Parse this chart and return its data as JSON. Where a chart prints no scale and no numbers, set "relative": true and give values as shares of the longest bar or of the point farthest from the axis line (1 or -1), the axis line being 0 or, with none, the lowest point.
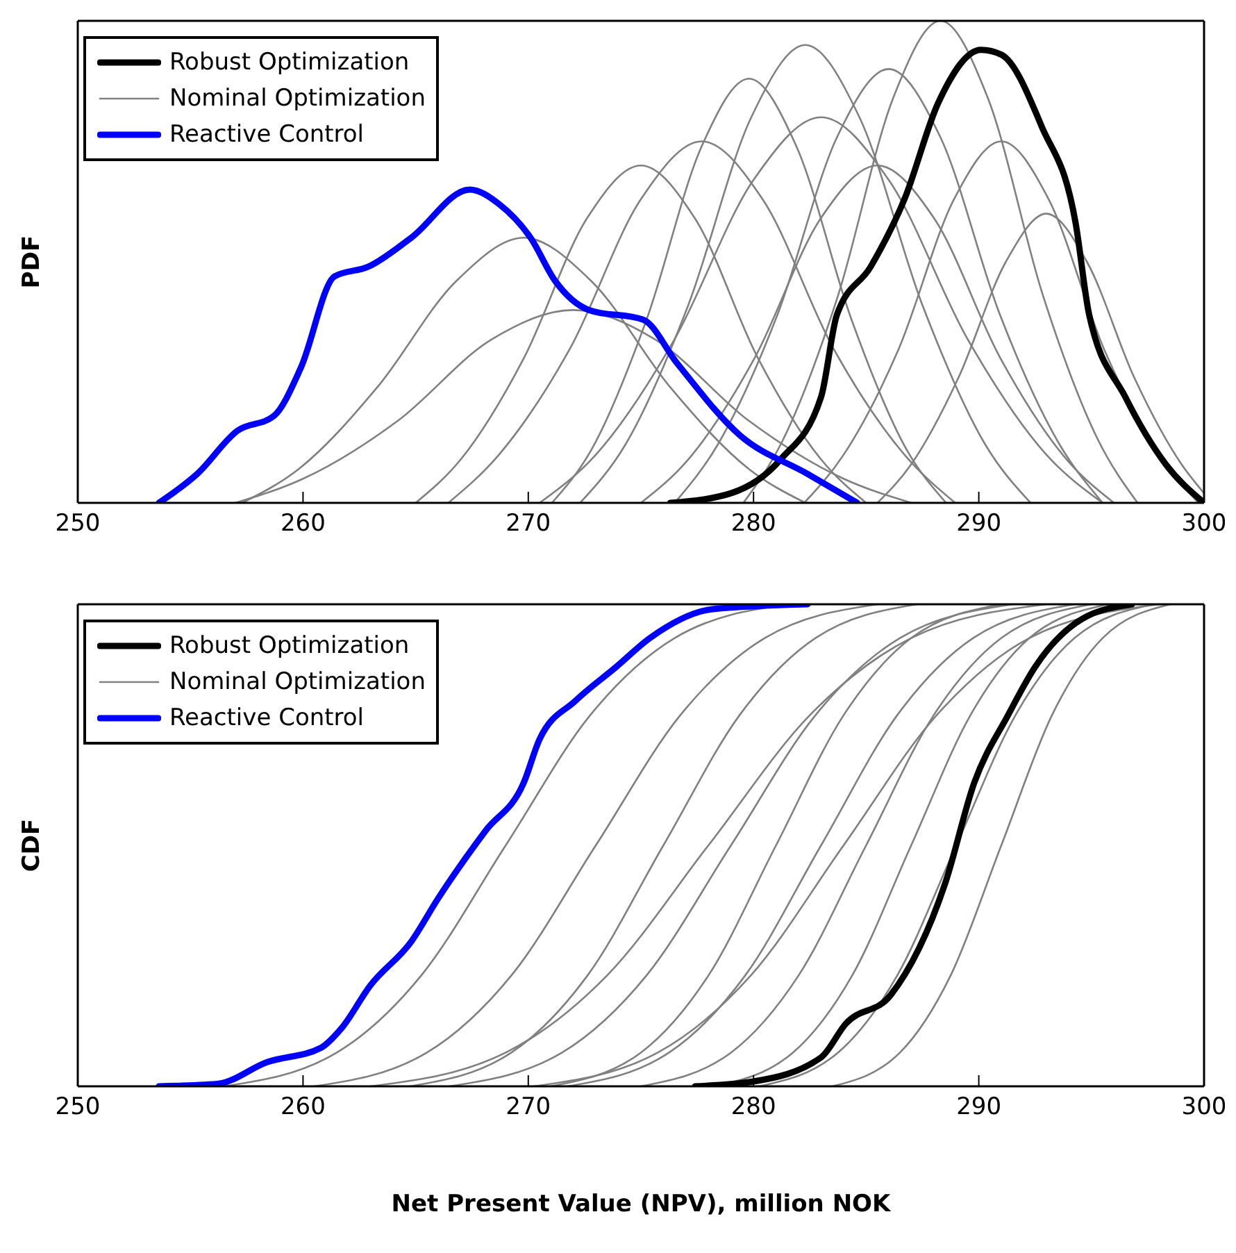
{
  "chart_data": [
    {
      "type": "line",
      "ylabel": "PDF",
      "relative": true,
      "xlim": [
        250,
        300
      ],
      "xticks": [
        250,
        260,
        270,
        280,
        290,
        300
      ],
      "legend": "top left",
      "series": [
        {
          "name": "Robust Optimization",
          "color": "#000000",
          "x": [
            276.3,
            279,
            281.2,
            283,
            283.7,
            285.2,
            286.7,
            288.2,
            290.1,
            291,
            292.8,
            294.3,
            294.9,
            296.5,
            298.3,
            300
          ],
          "values": [
            0,
            0.02,
            0.09,
            0.22,
            0.39,
            0.49,
            0.63,
            0.83,
            0.94,
            0.93,
            0.78,
            0.58,
            0.39,
            0.22,
            0.08,
            0
          ]
        },
        {
          "name": "Nominal Optimization",
          "color": "#808080",
          "x": [
            279.55,
            281.3,
            283.75,
            286.2,
            288.3,
            290.4,
            292.85,
            295.3,
            297.05
          ],
          "values": [
            0,
            0.13,
            0.43,
            0.84,
            1,
            0.84,
            0.43,
            0.13,
            0
          ]
        },
        {
          "name": "Reactive Control",
          "color": "#0000ff",
          "x": [
            253.6,
            255.3,
            257.1,
            258.7,
            259.9,
            261.4,
            262.9,
            264.8,
            267.4,
            268.7,
            270.1,
            271.2,
            272.7,
            275.1,
            276.6,
            279.4,
            282.4,
            284.6
          ],
          "values": [
            0,
            0.06,
            0.15,
            0.18,
            0.28,
            0.47,
            0.49,
            0.55,
            0.65,
            0.62,
            0.55,
            0.46,
            0.4,
            0.38,
            0.29,
            0.14,
            0.06,
            0
          ]
        },
        {
          "color": "#808080",
          "x": [
            272.3,
            274.3,
            277.1,
            279.9,
            282.3,
            284.7,
            287.5,
            290.3,
            292.3
          ],
          "values": [
            0,
            0.12,
            0.41,
            0.8,
            0.95,
            0.8,
            0.41,
            0.12,
            0
          ]
        },
        {
          "color": "#808080",
          "x": [
            257.3,
            259.8,
            263.3,
            266.8,
            269.8,
            272.8,
            276.3,
            279.8,
            282.3
          ],
          "values": [
            0,
            0.07,
            0.24,
            0.46,
            0.55,
            0.46,
            0.24,
            0.07,
            0
          ]
        },
        {
          "color": "#808080",
          "x": [
            266.45,
            268.7,
            271.85,
            275,
            277.7,
            280.4,
            283.55,
            286.7,
            288.95
          ],
          "values": [
            0,
            0.1,
            0.32,
            0.63,
            0.75,
            0.63,
            0.32,
            0.1,
            0
          ]
        },
        {
          "color": "#808080",
          "x": [
            276.5,
            278.4,
            281.06,
            283.72,
            286,
            288.28,
            290.94,
            293.6,
            295.5
          ],
          "values": [
            0,
            0.12,
            0.39,
            0.76,
            0.9,
            0.76,
            0.39,
            0.12,
            0
          ]
        },
        {
          "color": "#808080",
          "x": [
            265,
            267,
            269.8,
            272.6,
            275,
            277.4,
            280.2,
            283,
            285
          ],
          "values": [
            0,
            0.09,
            0.3,
            0.59,
            0.7,
            0.59,
            0.3,
            0.09,
            0
          ]
        },
        {
          "color": "#808080",
          "x": [
            282.25,
            284,
            286.45,
            288.9,
            291,
            293.1,
            295.55,
            298,
            299.75
          ],
          "values": [
            0,
            0.1,
            0.32,
            0.63,
            0.75,
            0.63,
            0.32,
            0.1,
            0
          ]
        },
        {
          "color": "#808080",
          "x": [
            270.5,
            273,
            276.5,
            280,
            283,
            286,
            289.5,
            293,
            295.5
          ],
          "values": [
            0,
            0.1,
            0.34,
            0.67,
            0.8,
            0.67,
            0.34,
            0.1,
            0
          ]
        },
        {
          "color": "#808080",
          "x": [
            271.05,
            272.8,
            275.25,
            277.7,
            279.8,
            281.9,
            284.35,
            286.8,
            288.55
          ],
          "values": [
            0,
            0.11,
            0.38,
            0.74,
            0.88,
            0.74,
            0.38,
            0.11,
            0
          ]
        },
        {
          "color": "#808080",
          "x": [
            285.5,
            287,
            289.1,
            291.2,
            293,
            294.8,
            296.9,
            299,
            300
          ],
          "values": [
            0,
            0.08,
            0.26,
            0.5,
            0.6,
            0.5,
            0.26,
            0.08,
            0.02
          ]
        },
        {
          "color": "#808080",
          "x": [
            257,
            260,
            264.2,
            268.4,
            272,
            275.6,
            279.8,
            284,
            287
          ],
          "values": [
            0,
            0.05,
            0.17,
            0.34,
            0.4,
            0.34,
            0.17,
            0.05,
            0
          ]
        },
        {
          "color": "#808080",
          "x": [
            275,
            277.1,
            280.04,
            282.98,
            285.5,
            288.02,
            290.96,
            293.9,
            296
          ],
          "values": [
            0,
            0.09,
            0.3,
            0.59,
            0.7,
            0.59,
            0.3,
            0.09,
            0
          ]
        }
      ]
    },
    {
      "type": "line",
      "ylabel": "CDF",
      "xlabel": "Net Present Value (NPV), million NOK",
      "relative": true,
      "xlim": [
        250,
        300
      ],
      "xticks": [
        250,
        260,
        270,
        280,
        290,
        300
      ],
      "legend": "top left",
      "series": [
        {
          "name": "Robust Optimization",
          "color": "#000000",
          "x": [
            277.4,
            280,
            283,
            284.1,
            286.1,
            288.5,
            289.8,
            291.3,
            292.5,
            294.6,
            296.8
          ],
          "values": [
            0,
            0.01,
            0.06,
            0.13,
            0.19,
            0.42,
            0.63,
            0.77,
            0.87,
            0.97,
            1
          ]
        },
        {
          "name": "Nominal Optimization",
          "color": "#808080",
          "x": [
            256.5,
            261.5,
            265.25,
            269,
            272.75,
            276.5,
            281.5
          ],
          "values": [
            0,
            0.07,
            0.23,
            0.5,
            0.77,
            0.93,
            1
          ]
        },
        {
          "name": "Reactive Control",
          "color": "#0000ff",
          "x": [
            253.6,
            256.2,
            258.4,
            260.8,
            261.7,
            263,
            264.8,
            266,
            268.1,
            269.8,
            270.5,
            272.1,
            273.9,
            275.4,
            278.2,
            282.4
          ],
          "values": [
            0,
            0.005,
            0.05,
            0.08,
            0.12,
            0.21,
            0.3,
            0.39,
            0.53,
            0.63,
            0.72,
            0.8,
            0.87,
            0.93,
            0.99,
            1
          ]
        },
        {
          "color": "#808080",
          "x": [
            260.5,
            265.5,
            269.25,
            273,
            276.75,
            280.5,
            285.5
          ],
          "values": [
            0,
            0.07,
            0.23,
            0.5,
            0.77,
            0.93,
            1
          ]
        },
        {
          "color": "#808080",
          "x": [
            264.75,
            269.25,
            272.63,
            276,
            279.38,
            282.75,
            287.25
          ],
          "values": [
            0,
            0.07,
            0.23,
            0.5,
            0.77,
            0.93,
            1
          ]
        },
        {
          "color": "#808080",
          "x": [
            266.5,
            271.5,
            275.25,
            279,
            282.75,
            286.5,
            291.5
          ],
          "values": [
            0,
            0.07,
            0.23,
            0.5,
            0.77,
            0.93,
            1
          ]
        },
        {
          "color": "#808080",
          "x": [
            271,
            275,
            278,
            281,
            284,
            287,
            291
          ],
          "values": [
            0,
            0.07,
            0.23,
            0.5,
            0.77,
            0.93,
            1
          ]
        },
        {
          "color": "#808080",
          "x": [
            271.75,
            276.25,
            279.63,
            283,
            286.38,
            289.75,
            294.25
          ],
          "values": [
            0,
            0.07,
            0.23,
            0.5,
            0.77,
            0.93,
            1
          ]
        },
        {
          "color": "#808080",
          "x": [
            275,
            279,
            282,
            285,
            288,
            291,
            295
          ],
          "values": [
            0,
            0.07,
            0.23,
            0.5,
            0.77,
            0.93,
            1
          ]
        },
        {
          "color": "#808080",
          "x": [
            278.25,
            281.75,
            284.38,
            287,
            289.63,
            292.25,
            295.75
          ],
          "values": [
            0,
            0.07,
            0.23,
            0.5,
            0.77,
            0.93,
            1
          ]
        },
        {
          "color": "#808080",
          "x": [
            280.25,
            283.75,
            286.38,
            289,
            291.63,
            294.25,
            297.75
          ],
          "values": [
            0,
            0.07,
            0.23,
            0.5,
            0.77,
            0.93,
            1
          ]
        },
        {
          "color": "#808080",
          "x": [
            263,
            269,
            273.5,
            278,
            282.5,
            287,
            293
          ],
          "values": [
            0,
            0.07,
            0.23,
            0.5,
            0.77,
            0.93,
            1
          ]
        },
        {
          "color": "#808080",
          "x": [
            270.25,
            275.75,
            279.88,
            284,
            288.13,
            292.25,
            298
          ],
          "values": [
            0,
            0.07,
            0.23,
            0.5,
            0.77,
            0.93,
            1
          ]
        },
        {
          "color": "#808080",
          "x": [
            283.5,
            286.5,
            288.75,
            291,
            293.25,
            295.5,
            298.5
          ],
          "values": [
            0,
            0.07,
            0.23,
            0.5,
            0.77,
            0.93,
            1
          ]
        }
      ]
    }
  ]
}
